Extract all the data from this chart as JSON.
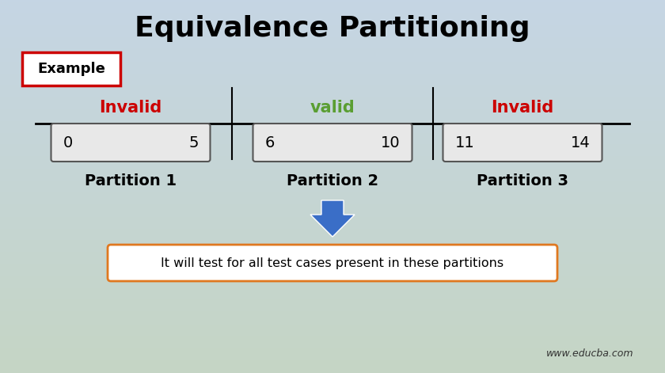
{
  "title": "Equivalence Partitioning",
  "title_fontsize": 26,
  "title_fontstyle": "bold",
  "title_color": "#000000",
  "example_label": "Example",
  "example_box_color": "#cc0000",
  "invalid_color": "#cc0000",
  "valid_color": "#5a9e32",
  "labels_validity": [
    "Invalid",
    "valid",
    "Invalid"
  ],
  "labels_partition": [
    "Partition 1",
    "Partition 2",
    "Partition 3"
  ],
  "partition_ranges": [
    [
      "0",
      "5"
    ],
    [
      "6",
      "10"
    ],
    [
      "11",
      "14"
    ]
  ],
  "arrow_color": "#3a6ec7",
  "bottom_text": "It will test for all test cases present in these partitions",
  "bottom_box_color": "#e07820",
  "website": "www.educba.com",
  "bg_color_top": "#c5d5e4",
  "bg_color_bottom": "#c5d5c5",
  "box_fill_color": "#e8e8e8",
  "box_edge_color": "#555555",
  "divider_color": "#000000",
  "line_color": "#000000"
}
